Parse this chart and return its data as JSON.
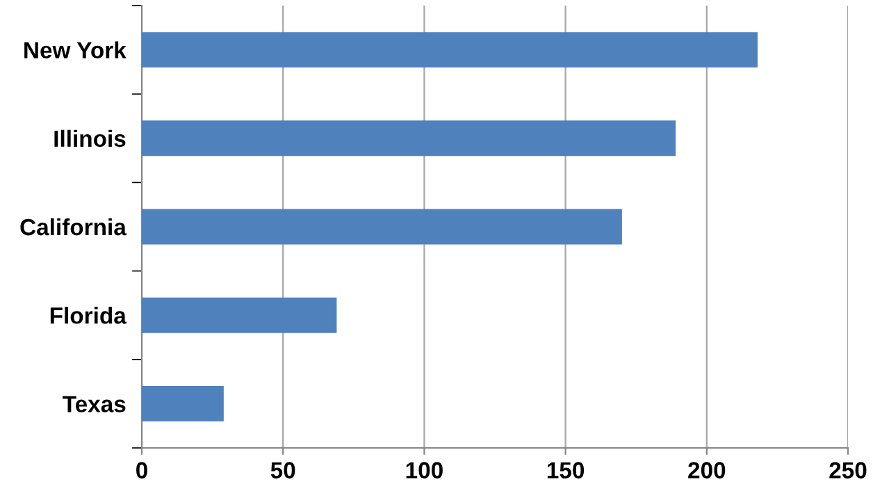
{
  "chart_data": {
    "type": "bar",
    "orientation": "horizontal",
    "categories": [
      "New York",
      "Illinois",
      "California",
      "Florida",
      "Texas"
    ],
    "values": [
      218,
      189,
      170,
      69,
      29
    ],
    "color": "#4f81bd",
    "xlim": [
      0,
      250
    ],
    "xticks": [
      0,
      50,
      100,
      150,
      200,
      250
    ],
    "grid": "x",
    "legend": false
  }
}
